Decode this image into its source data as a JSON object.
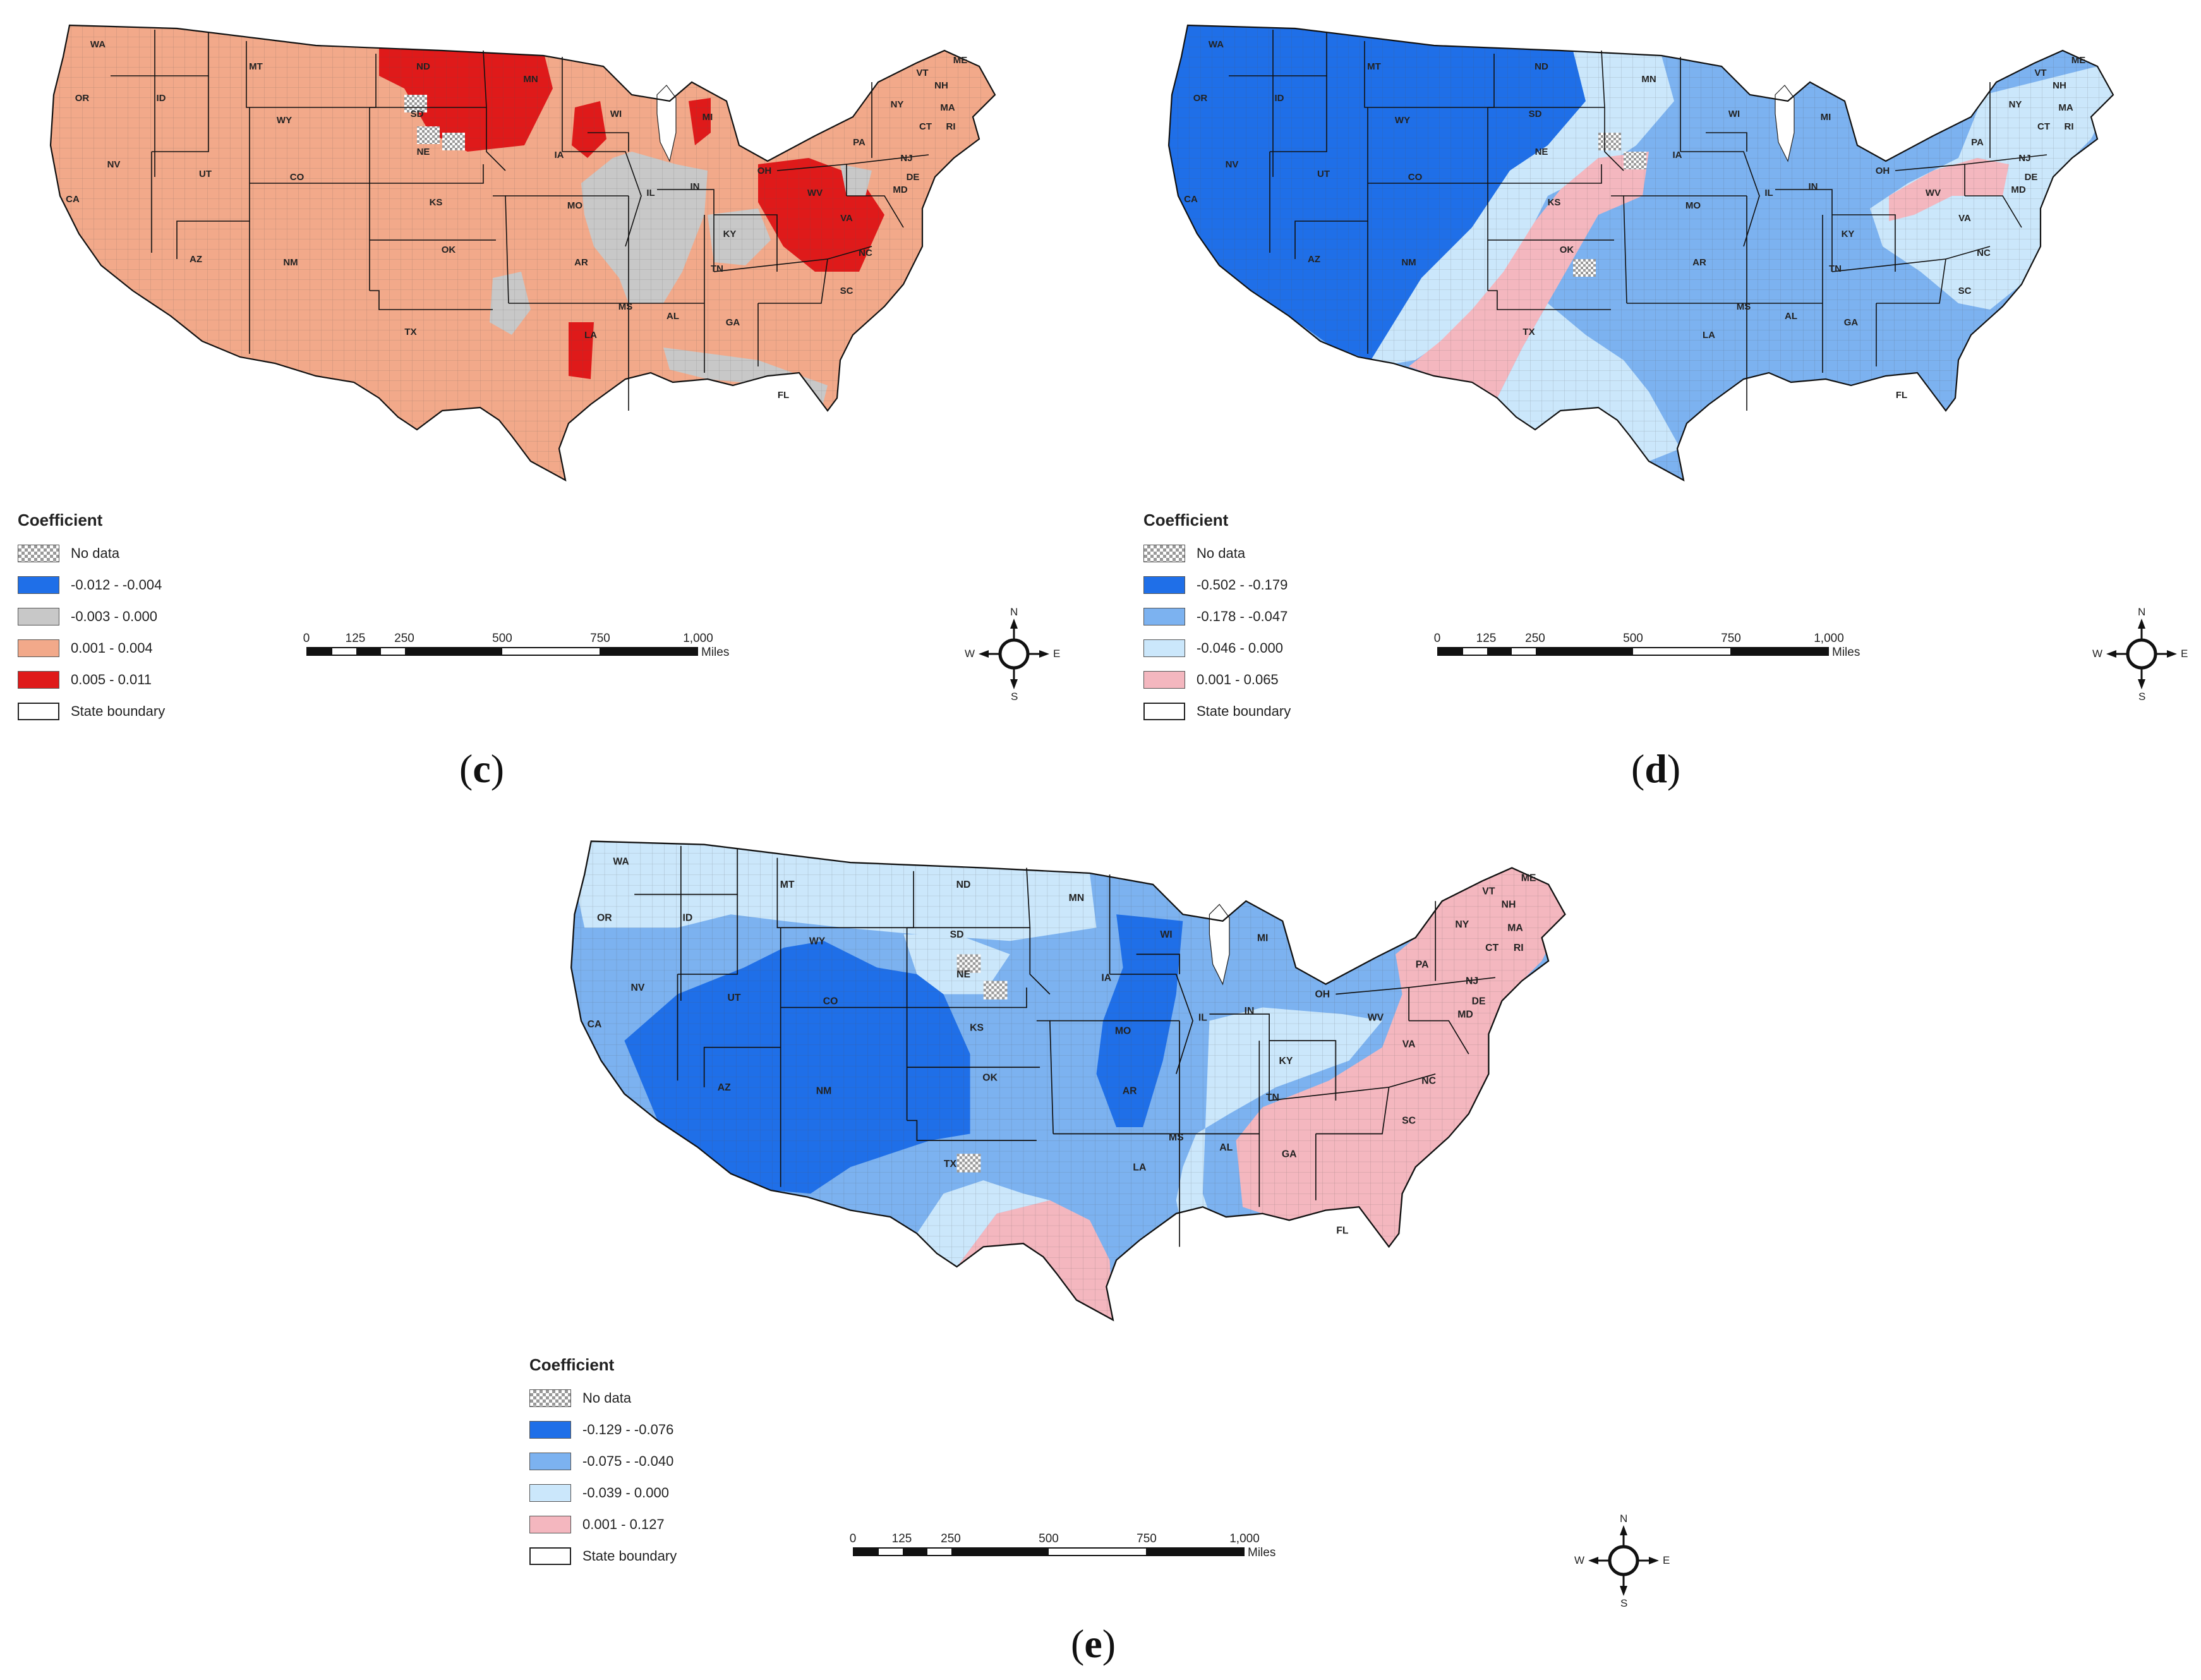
{
  "panels": [
    {
      "label_open": "(",
      "label_letter": "c",
      "label_close": ")",
      "colors": {
        "base": "#f2a98a",
        "blue": "#1f6fe8",
        "gray": "#c8c8c8",
        "red": "#df1a1a",
        "pink": "#f4b7bf"
      },
      "legend": {
        "title": "Coefficient",
        "items": [
          {
            "label": "No data",
            "swatch": "hatch"
          },
          {
            "label": "-0.012 - -0.004",
            "color": "#1f6fe8"
          },
          {
            "label": "-0.003 - 0.000",
            "color": "#c8c8c8"
          },
          {
            "label": "0.001 - 0.004",
            "color": "#f2a98a"
          },
          {
            "label": "0.005 - 0.011",
            "color": "#df1a1a"
          },
          {
            "label": "State boundary",
            "swatch": "outline"
          }
        ]
      }
    },
    {
      "label_open": "(",
      "label_letter": "d",
      "label_close": ")",
      "colors": {
        "base": "#7cb2f0",
        "blue": "#1f6fe8",
        "light": "#cbe7fb",
        "pink": "#f4b7bf"
      },
      "legend": {
        "title": "Coefficient",
        "items": [
          {
            "label": "No data",
            "swatch": "hatch"
          },
          {
            "label": "-0.502 - -0.179",
            "color": "#1f6fe8"
          },
          {
            "label": "-0.178 - -0.047",
            "color": "#7cb2f0"
          },
          {
            "label": "-0.046 - 0.000",
            "color": "#cbe7fb"
          },
          {
            "label": "0.001 - 0.065",
            "color": "#f4b7bf"
          },
          {
            "label": "State boundary",
            "swatch": "outline"
          }
        ]
      }
    },
    {
      "label_open": "(",
      "label_letter": "e",
      "label_close": ")",
      "colors": {
        "base": "#7cb2f0",
        "blue": "#1f6fe8",
        "light": "#cbe7fb",
        "pink": "#f4b7bf"
      },
      "legend": {
        "title": "Coefficient",
        "items": [
          {
            "label": "No data",
            "swatch": "hatch"
          },
          {
            "label": "-0.129 - -0.076",
            "color": "#1f6fe8"
          },
          {
            "label": "-0.075 - -0.040",
            "color": "#7cb2f0"
          },
          {
            "label": "-0.039 - 0.000",
            "color": "#cbe7fb"
          },
          {
            "label": "0.001 - 0.127",
            "color": "#f4b7bf"
          },
          {
            "label": "State boundary",
            "swatch": "outline"
          }
        ]
      }
    }
  ],
  "scale": {
    "ticks": [
      "0",
      "125",
      "250",
      "500",
      "750",
      "1,000"
    ],
    "units": "Miles"
  },
  "compass": {
    "n": "N",
    "s": "S",
    "e": "E",
    "w": "W"
  },
  "state_labels": [
    "WA",
    "OR",
    "CA",
    "NV",
    "ID",
    "MT",
    "WY",
    "UT",
    "AZ",
    "NM",
    "CO",
    "ND",
    "SD",
    "NE",
    "KS",
    "OK",
    "TX",
    "MN",
    "IA",
    "MO",
    "AR",
    "LA",
    "WI",
    "IL",
    "MS",
    "MI",
    "IN",
    "KY",
    "TN",
    "AL",
    "OH",
    "GA",
    "FL",
    "WV",
    "VA",
    "NC",
    "SC",
    "PA",
    "NY",
    "ME",
    "VT",
    "NH",
    "MA",
    "CT",
    "RI",
    "NJ",
    "DE",
    "MD"
  ]
}
